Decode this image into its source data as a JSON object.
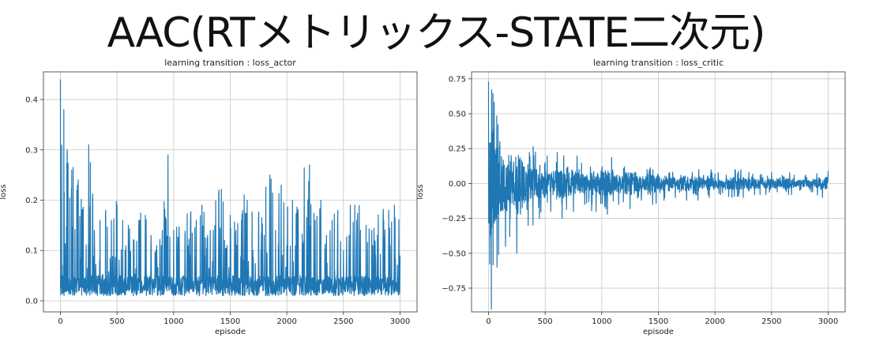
{
  "slide_title": "AAC(RTメトリックス-STATE二次元)",
  "chart_data": [
    {
      "type": "line",
      "title": "learning transition : loss_actor",
      "xlabel": "episode",
      "ylabel": "loss",
      "xlim": [
        -150,
        3150
      ],
      "ylim": [
        -0.022,
        0.455
      ],
      "xticks": [
        0,
        500,
        1000,
        1500,
        2000,
        2500,
        3000
      ],
      "yticks": [
        0.0,
        0.1,
        0.2,
        0.3,
        0.4
      ],
      "ytick_labels": [
        "0.0",
        "0.1",
        "0.2",
        "0.3",
        "0.4"
      ],
      "grid": true,
      "color": "#1f77b4",
      "series": [
        {
          "x": [
            0,
            30,
            60,
            100,
            150,
            200,
            250,
            300,
            350,
            400,
            450,
            500,
            550,
            600,
            650,
            700,
            750,
            800,
            850,
            900,
            950,
            1000,
            1050,
            1100,
            1150,
            1200,
            1250,
            1300,
            1350,
            1400,
            1450,
            1500,
            1550,
            1600,
            1650,
            1700,
            1750,
            1800,
            1850,
            1900,
            1950,
            2000,
            2050,
            2100,
            2150,
            2200,
            2250,
            2300,
            2350,
            2400,
            2450,
            2500,
            2550,
            2600,
            2650,
            2700,
            2750,
            2800,
            2850,
            2900,
            2950,
            3000
          ],
          "y": [
            0.44,
            0.38,
            0.3,
            0.26,
            0.23,
            0.17,
            0.31,
            0.14,
            0.16,
            0.18,
            0.16,
            0.19,
            0.16,
            0.15,
            0.12,
            0.16,
            0.17,
            0.13,
            0.11,
            0.14,
            0.29,
            0.14,
            0.11,
            0.13,
            0.17,
            0.16,
            0.19,
            0.13,
            0.14,
            0.22,
            0.12,
            0.17,
            0.14,
            0.16,
            0.2,
            0.1,
            0.16,
            0.13,
            0.25,
            0.14,
            0.23,
            0.11,
            0.2,
            0.17,
            0.12,
            0.27,
            0.16,
            0.2,
            0.13,
            0.16,
            0.18,
            0.1,
            0.13,
            0.19,
            0.14,
            0.15,
            0.14,
            0.13,
            0.17,
            0.18,
            0.19,
            0.09
          ]
        }
      ]
    },
    {
      "type": "line",
      "title": "learning transition : loss_critic",
      "xlabel": "episode",
      "ylabel": "loss",
      "xlim": [
        -150,
        3150
      ],
      "ylim": [
        -0.92,
        0.8
      ],
      "xticks": [
        0,
        500,
        1000,
        1500,
        2000,
        2500,
        3000
      ],
      "yticks": [
        -0.75,
        -0.5,
        -0.25,
        0.0,
        0.25,
        0.5,
        0.75
      ],
      "ytick_labels": [
        "−0.75",
        "−0.50",
        "−0.25",
        "0.00",
        "0.25",
        "0.50",
        "0.75"
      ],
      "grid": true,
      "color": "#1f77b4",
      "series": [
        {
          "x": [
            0,
            25,
            50,
            75,
            100,
            150,
            200,
            250,
            300,
            350,
            400,
            450,
            500,
            550,
            600,
            650,
            700,
            750,
            800,
            850,
            900,
            950,
            1000,
            1050,
            1100,
            1150,
            1200,
            1250,
            1300,
            1350,
            1400,
            1450,
            1500,
            1550,
            1600,
            1650,
            1700,
            1750,
            1800,
            1850,
            1900,
            1950,
            2000,
            2050,
            2100,
            2150,
            2200,
            2250,
            2300,
            2350,
            2400,
            2450,
            2500,
            2550,
            2600,
            2650,
            2700,
            2750,
            2800,
            2850,
            2900,
            2950,
            3000
          ],
          "y": [
            0.73,
            -0.9,
            0.58,
            -0.6,
            0.3,
            -0.45,
            0.2,
            -0.5,
            0.15,
            -0.3,
            0.2,
            -0.25,
            0.15,
            -0.2,
            0.15,
            -0.25,
            0.12,
            -0.2,
            0.1,
            -0.15,
            0.12,
            -0.2,
            0.1,
            -0.22,
            0.08,
            -0.15,
            0.12,
            -0.18,
            0.08,
            -0.12,
            0.1,
            -0.15,
            0.06,
            -0.12,
            0.08,
            -0.1,
            0.06,
            -0.12,
            0.08,
            -0.12,
            0.06,
            -0.1,
            0.07,
            -0.08,
            0.06,
            -0.1,
            0.07,
            -0.1,
            0.08,
            -0.08,
            0.06,
            -0.08,
            0.08,
            -0.06,
            0.05,
            -0.08,
            0.06,
            -0.05,
            0.06,
            -0.06,
            0.07,
            -0.1,
            0.09
          ]
        }
      ]
    }
  ]
}
